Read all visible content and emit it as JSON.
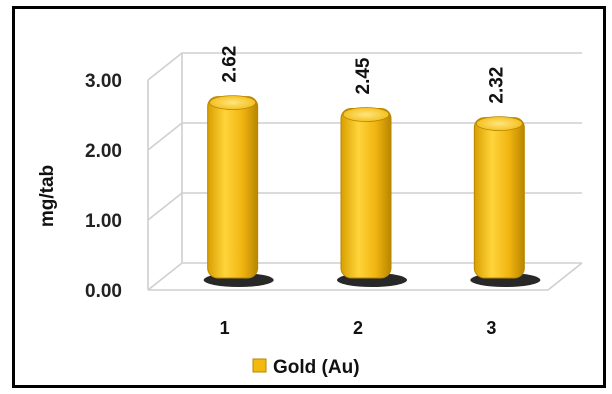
{
  "chart_data": {
    "type": "bar",
    "categories": [
      "1",
      "2",
      "3"
    ],
    "series": [
      {
        "name": "Gold (Au)",
        "values": [
          2.62,
          2.45,
          2.32
        ]
      }
    ],
    "value_labels": [
      "2.62",
      "2.45",
      "2.32"
    ],
    "ylabel": "mg/tab",
    "ylim": [
      0,
      3
    ],
    "yticks": [
      "0.00",
      "1.00",
      "2.00",
      "3.00"
    ],
    "grid": true,
    "legend_position": "bottom",
    "style": "3d-cylinder",
    "colors": {
      "bar": "#f2b90f",
      "bar_light": "#ffd84a",
      "bar_dark": "#b88600",
      "grid": "#cfcfcf",
      "frame": "#000000"
    }
  }
}
